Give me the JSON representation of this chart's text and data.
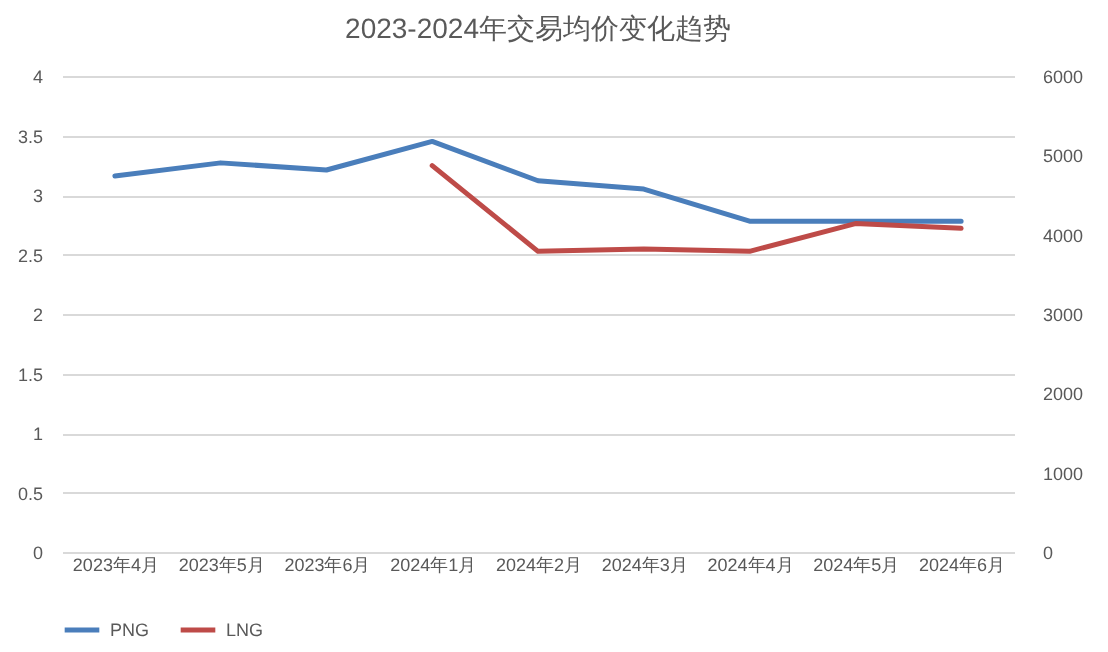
{
  "chart_data": {
    "type": "line",
    "title": "2023-2024年交易均价变化趋势",
    "categories": [
      "2023年4月",
      "2023年5月",
      "2023年6月",
      "2024年1月",
      "2024年2月",
      "2024年3月",
      "2024年4月",
      "2024年5月",
      "2024年6月"
    ],
    "series": [
      {
        "name": "PNG",
        "color": "#4a7ebb",
        "values": [
          3.16,
          3.27,
          3.21,
          3.45,
          3.12,
          3.05,
          2.78,
          2.78,
          2.78
        ]
      },
      {
        "name": "LNG",
        "color": "#be4b48",
        "axis": "y2",
        "values": [
          null,
          null,
          null,
          4870,
          3790,
          3820,
          3790,
          4140,
          4080
        ]
      }
    ],
    "ylim": [
      0,
      4
    ],
    "yticks": [
      0,
      0.5,
      1,
      1.5,
      2,
      2.5,
      3,
      3.5,
      4
    ],
    "y2lim": [
      0,
      6000
    ],
    "y2ticks": [
      0,
      1000,
      2000,
      3000,
      4000,
      5000,
      6000
    ],
    "grid": "y",
    "legend": "bottom",
    "marker": "none",
    "line_style": "solid"
  }
}
